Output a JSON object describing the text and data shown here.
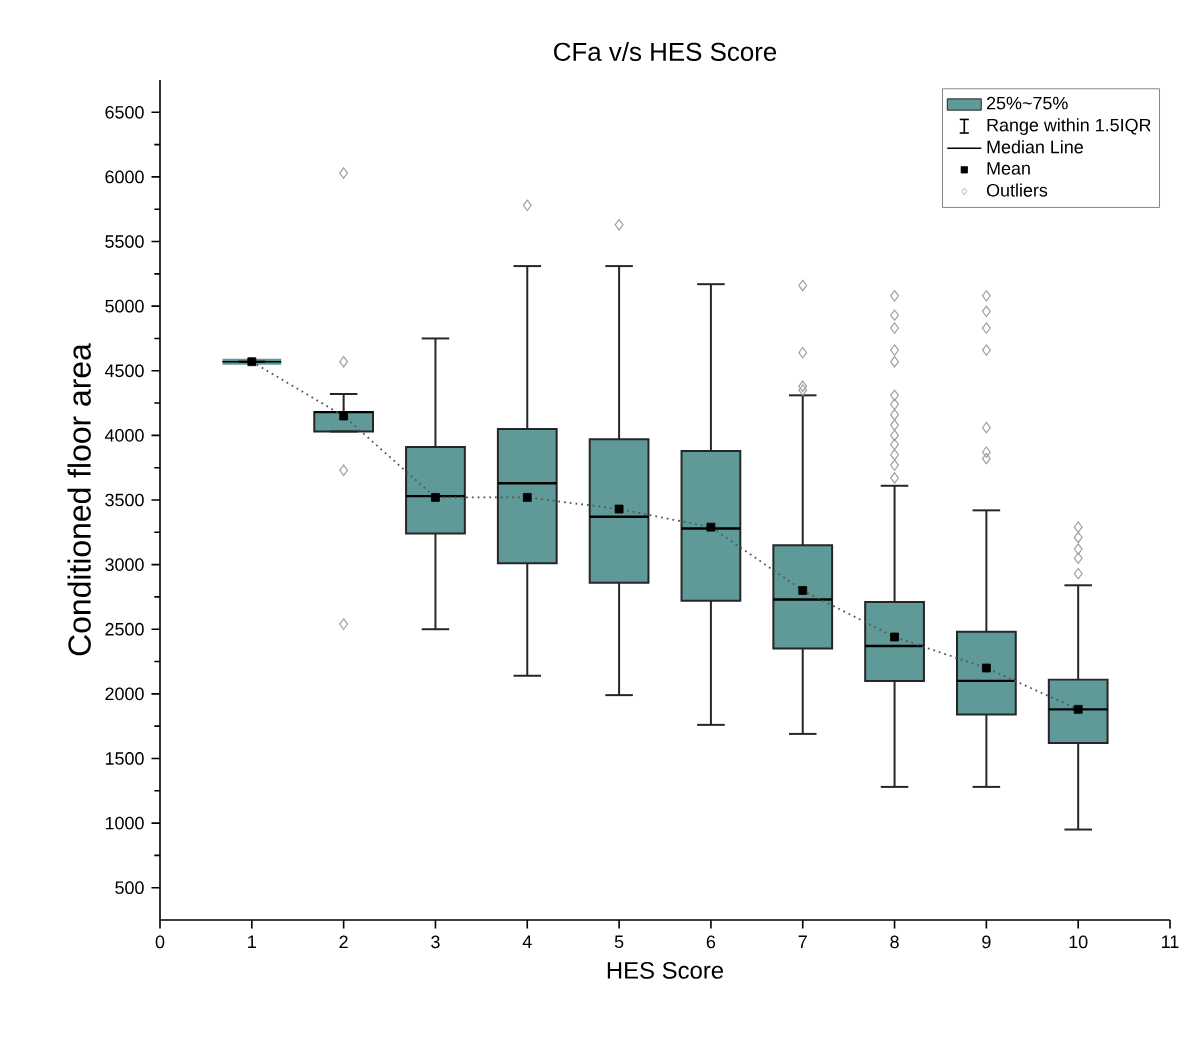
{
  "chart_data": {
    "type": "box",
    "title": "CFa v/s HES Score",
    "xlabel": "HES Score",
    "ylabel": "Conditioned floor area",
    "xlim": [
      0,
      11
    ],
    "xticks": [
      0,
      1,
      2,
      3,
      4,
      5,
      6,
      7,
      8,
      9,
      10,
      11
    ],
    "ylim": [
      250,
      6750
    ],
    "yticks": [
      500,
      1000,
      1500,
      2000,
      2500,
      3000,
      3500,
      4000,
      4500,
      5000,
      5500,
      6000,
      6500
    ],
    "legend": "top right",
    "annotations": [
      "Range within 1.5IQR",
      "Median Line"
    ],
    "series": [
      {
        "name": "25%~75%",
        "color": "#5f9a98",
        "x": [
          1,
          2,
          3,
          4,
          5,
          6,
          7,
          8,
          9,
          10
        ],
        "boxes": [
          {
            "low": 4570,
            "q1": 4570,
            "median": 4570,
            "q3": 4570,
            "high": 4570
          },
          {
            "low": 4030,
            "q1": 4030,
            "median": 4180,
            "q3": 4180,
            "high": 4320
          },
          {
            "low": 2500,
            "q1": 3240,
            "median": 3530,
            "q3": 3910,
            "high": 4750
          },
          {
            "low": 2140,
            "q1": 3010,
            "median": 3630,
            "q3": 4050,
            "high": 5310
          },
          {
            "low": 1990,
            "q1": 2860,
            "median": 3370,
            "q3": 3970,
            "high": 5310
          },
          {
            "low": 1760,
            "q1": 2720,
            "median": 3280,
            "q3": 3880,
            "high": 5170
          },
          {
            "low": 1690,
            "q1": 2350,
            "median": 2730,
            "q3": 3150,
            "high": 4310
          },
          {
            "low": 1280,
            "q1": 2100,
            "median": 2370,
            "q3": 2710,
            "high": 3610
          },
          {
            "low": 1280,
            "q1": 1840,
            "median": 2100,
            "q3": 2480,
            "high": 3420
          },
          {
            "low": 950,
            "q1": 1620,
            "median": 1880,
            "q3": 2110,
            "high": 2840
          }
        ]
      },
      {
        "type": "line",
        "color": "#555555",
        "line_style": "dotted",
        "marker": "none",
        "x": [
          1,
          2,
          3,
          4,
          5,
          6,
          7,
          8,
          9,
          10
        ],
        "values": [
          4570,
          4150,
          3520,
          3520,
          3430,
          3290,
          2800,
          2440,
          2200,
          1880
        ]
      },
      {
        "name": "Mean",
        "type": "scatter",
        "color": "#000000",
        "marker": "square",
        "x": [
          1,
          2,
          3,
          4,
          5,
          6,
          7,
          8,
          9,
          10
        ],
        "values": [
          4570,
          4150,
          3520,
          3520,
          3430,
          3290,
          2800,
          2440,
          2200,
          1880
        ]
      },
      {
        "name": "Outliers",
        "type": "scatter",
        "color": "#a0a0a0",
        "marker": "diamond",
        "x": [
          2,
          2,
          2,
          2,
          4,
          5,
          7,
          7,
          7,
          7,
          8,
          8,
          8,
          8,
          8,
          8,
          8,
          8,
          8,
          8,
          8,
          8,
          8,
          8,
          9,
          9,
          9,
          9,
          9,
          9,
          9,
          10,
          10,
          10,
          10,
          10
        ],
        "values": [
          6030,
          4570,
          3730,
          2540,
          5780,
          5630,
          5160,
          4640,
          4380,
          4350,
          5080,
          4930,
          4830,
          4660,
          4570,
          4310,
          4240,
          4160,
          4080,
          4000,
          3930,
          3850,
          3770,
          3670,
          5080,
          4960,
          4830,
          4660,
          4060,
          3870,
          3820,
          3290,
          3210,
          3120,
          3050,
          2930
        ]
      }
    ]
  }
}
